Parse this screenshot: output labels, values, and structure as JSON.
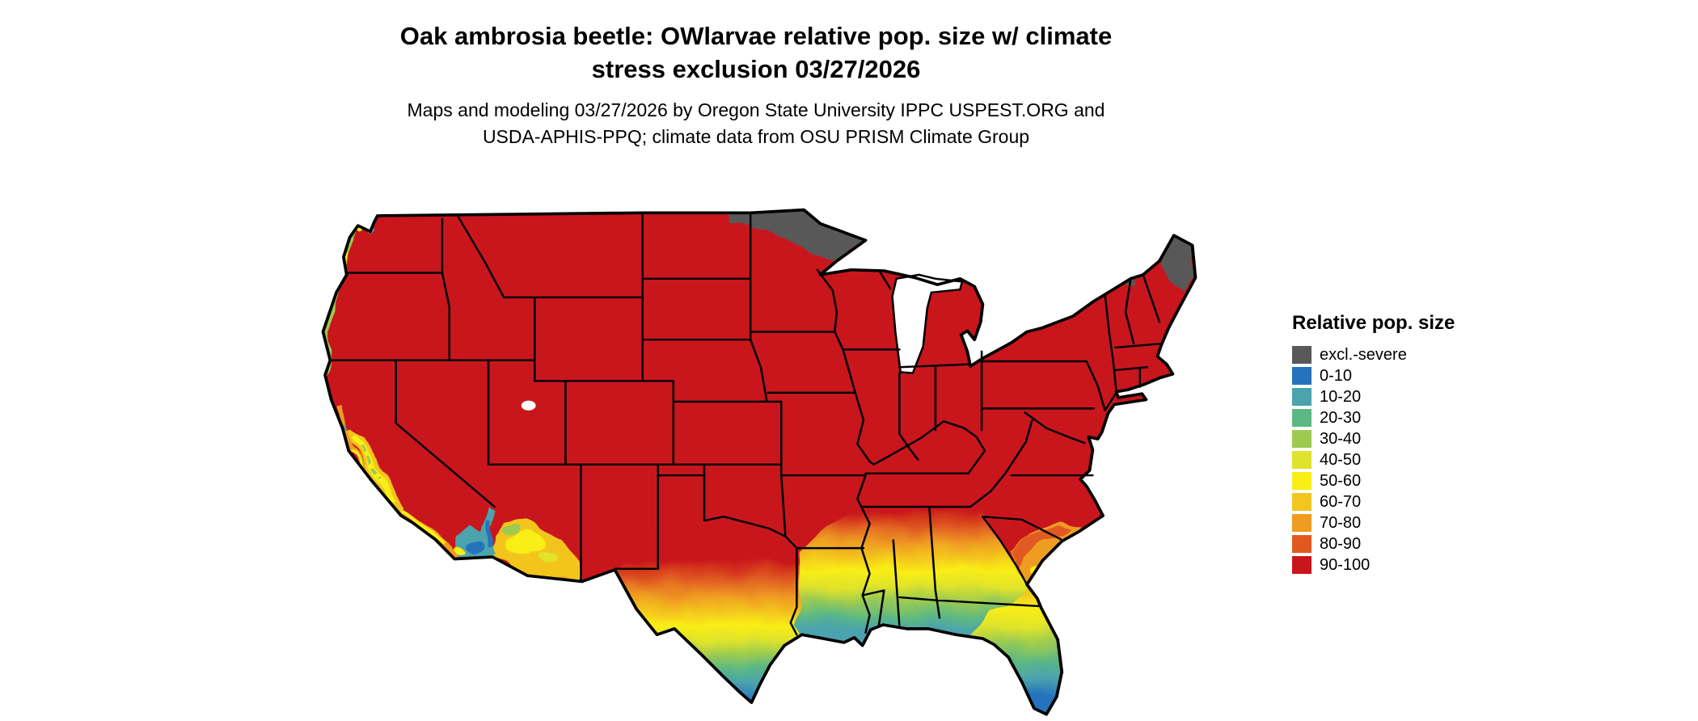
{
  "header": {
    "title_line1": "Oak ambrosia beetle: OWlarvae relative pop. size w/ climate",
    "title_line2": "stress exclusion 03/27/2026",
    "subtitle_line1": "Maps and modeling 03/27/2026 by Oregon State University IPPC USPEST.ORG and",
    "subtitle_line2": "USDA-APHIS-PPQ; climate data from OSU PRISM Climate Group"
  },
  "legend": {
    "title": "Relative pop. size",
    "items": [
      {
        "label": "excl.-severe",
        "color": "#595959"
      },
      {
        "label": "0-10",
        "color": "#2673bd"
      },
      {
        "label": "10-20",
        "color": "#4ba3ad"
      },
      {
        "label": "20-30",
        "color": "#5cb883"
      },
      {
        "label": "30-40",
        "color": "#9ccb50"
      },
      {
        "label": "40-50",
        "color": "#dfe32b"
      },
      {
        "label": "50-60",
        "color": "#f9ee16"
      },
      {
        "label": "60-70",
        "color": "#f3c51f"
      },
      {
        "label": "70-80",
        "color": "#ef9c20"
      },
      {
        "label": "80-90",
        "color": "#e05a20"
      },
      {
        "label": "90-100",
        "color": "#c9161d"
      }
    ]
  },
  "chart_data": {
    "type": "heatmap",
    "title": "Oak ambrosia beetle: OWlarvae relative pop. size w/ climate stress exclusion 03/27/2026",
    "legend_title": "Relative pop. size",
    "classes": [
      "excl.-severe",
      "0-10",
      "10-20",
      "20-30",
      "30-40",
      "40-50",
      "50-60",
      "60-70",
      "70-80",
      "80-90",
      "90-100"
    ],
    "class_colors": [
      "#595959",
      "#2673bd",
      "#4ba3ad",
      "#5cb883",
      "#9ccb50",
      "#dfe32b",
      "#f9ee16",
      "#f3c51f",
      "#ef9c20",
      "#e05a20",
      "#c9161d"
    ]
  }
}
